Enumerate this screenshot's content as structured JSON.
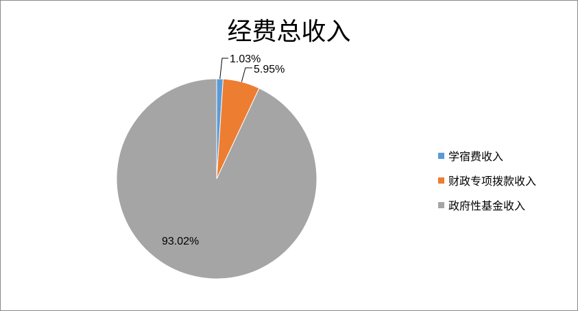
{
  "chart_data": {
    "type": "pie",
    "title": "经费总收入",
    "categories": [
      "学宿费收入",
      "财政专项拨款收入",
      "政府性基金收入"
    ],
    "values": [
      1.03,
      5.95,
      93.02
    ],
    "labels": [
      "1.03%",
      "5.95%",
      "93.02%"
    ],
    "colors": [
      "#5B9BD5",
      "#ED7D31",
      "#A5A5A5"
    ],
    "legend_position": "right"
  }
}
